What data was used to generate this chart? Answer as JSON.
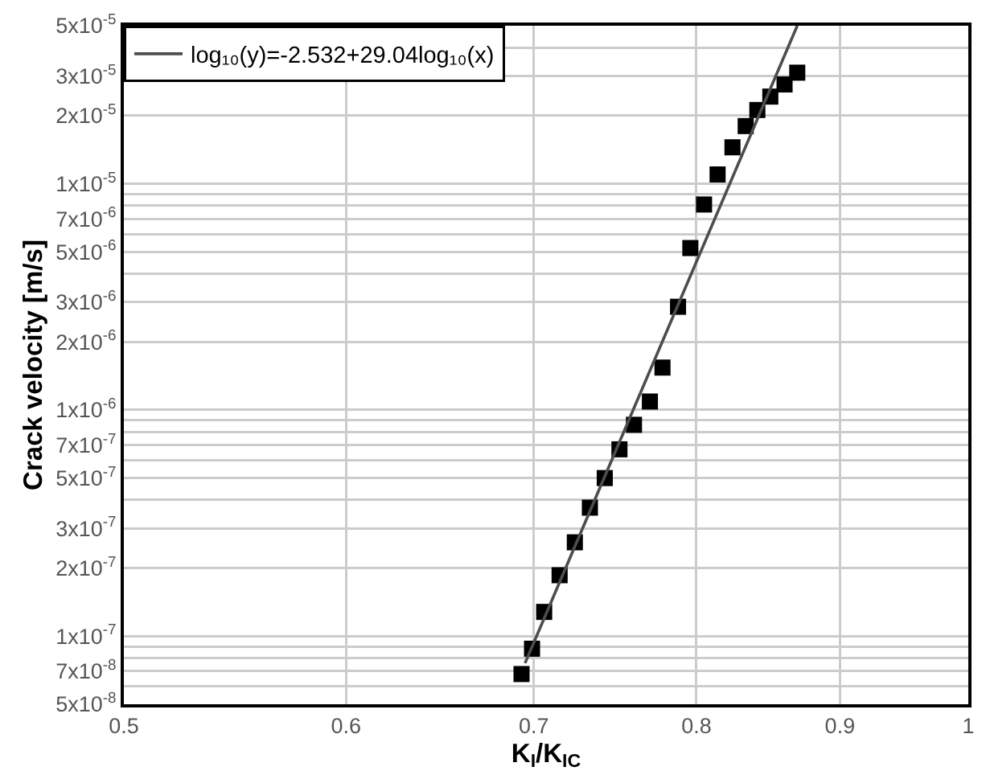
{
  "chart_data": {
    "type": "scatter",
    "xlabel": "K$_{I}$/K$_{IC}$",
    "ylabel": "Crack velocity [m/s]",
    "series": [
      {
        "color": "#000000",
        "x": [
          0.693,
          0.699,
          0.706,
          0.715,
          0.724,
          0.733,
          0.742,
          0.751,
          0.76,
          0.77,
          0.778,
          0.788,
          0.796,
          0.805,
          0.814,
          0.824,
          0.833,
          0.841,
          0.85,
          0.86,
          0.869
        ],
        "values": [
          6.8e-08,
          8.8e-08,
          1.28e-07,
          1.86e-07,
          2.6e-07,
          3.7e-07,
          5e-07,
          6.7e-07,
          8.6e-07,
          1.09e-06,
          1.54e-06,
          2.86e-06,
          5.2e-06,
          8.1e-06,
          1.1e-05,
          1.45e-05,
          1.8e-05,
          2.12e-05,
          2.43e-05,
          2.75e-05,
          3.1e-05
        ]
      },
      {
        "type": "line",
        "name": "log₁₀(y)=-2.532+29.04log₁₀(x)",
        "color": "#4d4d4d",
        "marker": "none",
        "line_style": "solid",
        "x": [
          0.695,
          0.869
        ],
        "values": [
          7.6e-08,
          5e-05
        ]
      }
    ],
    "xlim": [
      0.5,
      1
    ],
    "xticks": [
      0.5,
      0.6,
      0.7,
      0.8,
      0.9,
      1
    ],
    "ylim": [
      5e-08,
      5e-05
    ],
    "yticks": [
      {
        "value": 5e-08,
        "label": "5x10$^{-8}$"
      },
      {
        "value": 6e-08,
        "label": null
      },
      {
        "value": 7e-08,
        "label": "7x10$^{-8}$"
      },
      {
        "value": 8e-08,
        "label": null
      },
      {
        "value": 9e-08,
        "label": null
      },
      {
        "value": 1e-07,
        "label": "1x10$^{-7}$"
      },
      {
        "value": 2e-07,
        "label": "2x10$^{-7}$"
      },
      {
        "value": 3e-07,
        "label": "3x10$^{-7}$"
      },
      {
        "value": 4e-07,
        "label": null
      },
      {
        "value": 5e-07,
        "label": "5x10$^{-7}$"
      },
      {
        "value": 6e-07,
        "label": null
      },
      {
        "value": 7e-07,
        "label": "7x10$^{-7}$"
      },
      {
        "value": 8e-07,
        "label": null
      },
      {
        "value": 9e-07,
        "label": null
      },
      {
        "value": 1e-06,
        "label": "1x10$^{-6}$"
      },
      {
        "value": 2e-06,
        "label": "2x10$^{-6}$"
      },
      {
        "value": 3e-06,
        "label": "3x10$^{-6}$"
      },
      {
        "value": 4e-06,
        "label": null
      },
      {
        "value": 5e-06,
        "label": "5x10$^{-6}$"
      },
      {
        "value": 6e-06,
        "label": null
      },
      {
        "value": 7e-06,
        "label": "7x10$^{-6}$"
      },
      {
        "value": 8e-06,
        "label": null
      },
      {
        "value": 9e-06,
        "label": null
      },
      {
        "value": 1e-05,
        "label": "1x10$^{-5}$"
      },
      {
        "value": 2e-05,
        "label": "2x10$^{-5}$"
      },
      {
        "value": 3e-05,
        "label": "3x10$^{-5}$"
      },
      {
        "value": 4e-05,
        "label": null
      },
      {
        "value": 5e-05,
        "label": "5x10$^{-5}$"
      }
    ],
    "log": "xy",
    "grid": true,
    "legend": "top left",
    "marker": "square"
  }
}
